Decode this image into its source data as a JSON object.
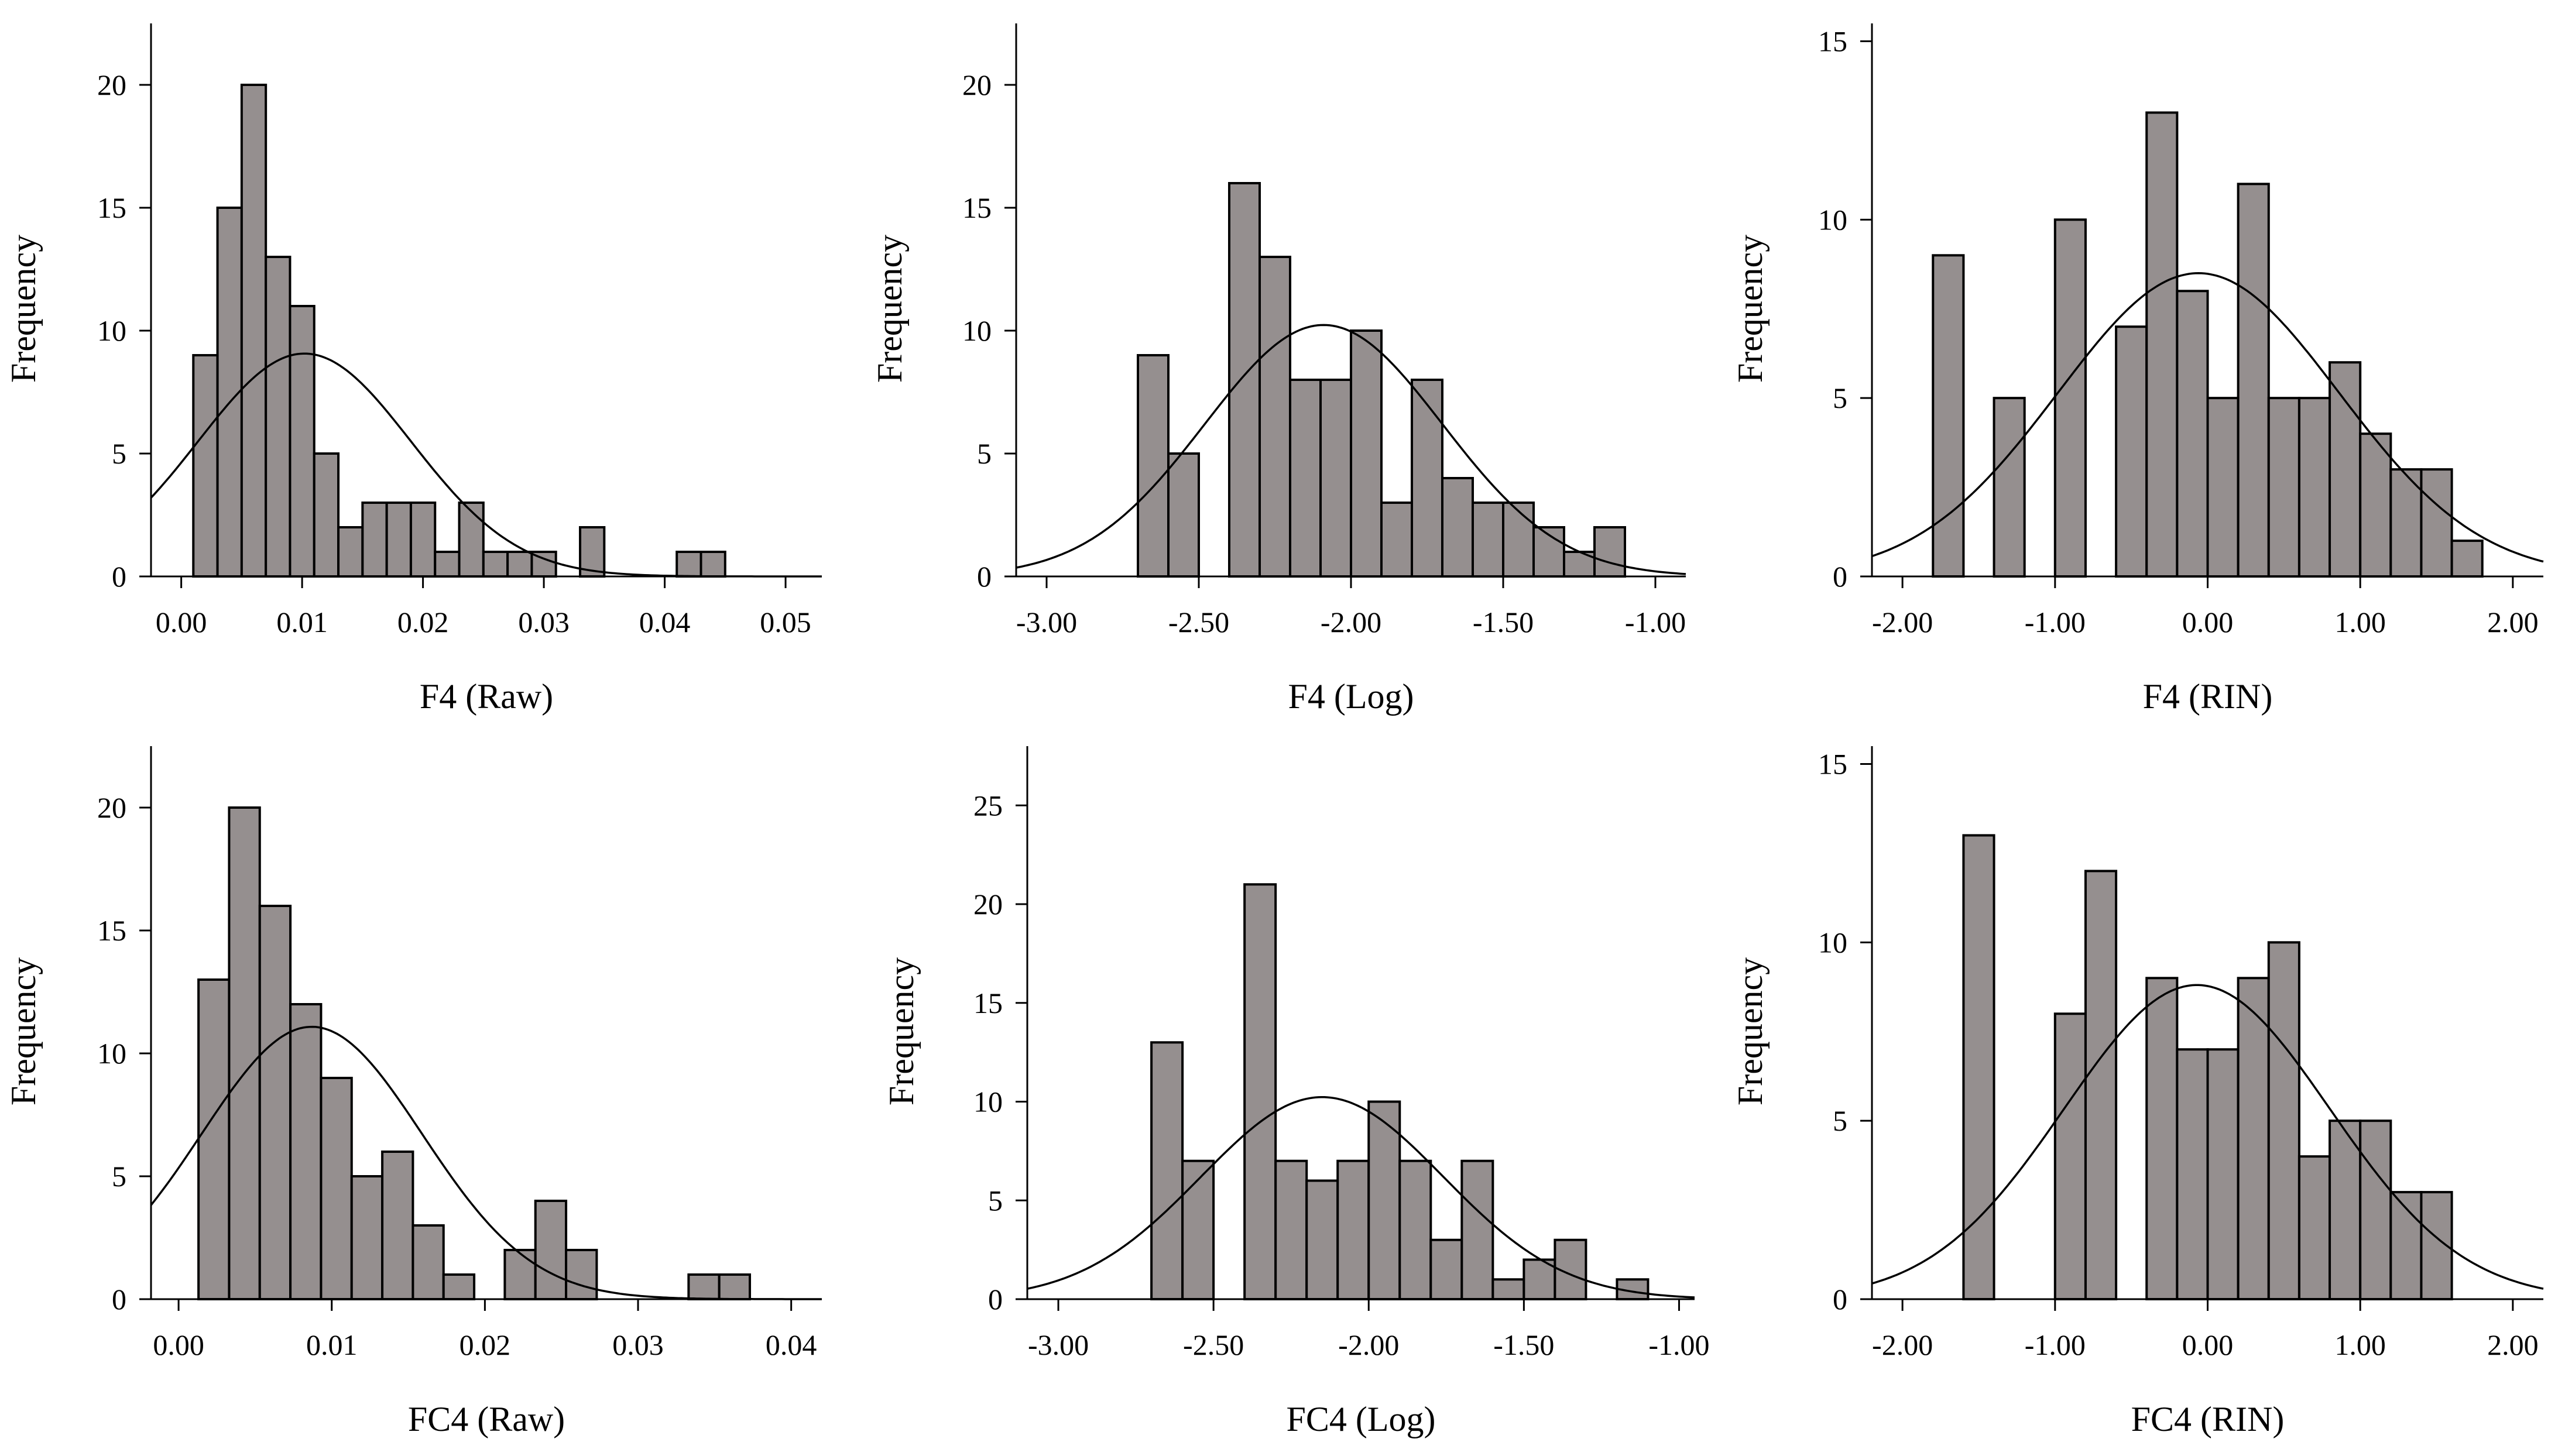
{
  "chart_data": [
    {
      "type": "bar",
      "title": "",
      "xlabel": "F4 (Raw)",
      "ylabel": "Frequency",
      "xlim": [
        -0.0025,
        0.053
      ],
      "ylim": [
        0,
        22.5
      ],
      "xticks": [
        0,
        0.01,
        0.02,
        0.03,
        0.04,
        0.05
      ],
      "xtick_labels": [
        "0.00",
        "0.01",
        "0.02",
        "0.03",
        "0.04",
        "0.05"
      ],
      "yticks": [
        0,
        5,
        10,
        15,
        20
      ],
      "ytick_labels": [
        "0",
        "5",
        "10",
        "15",
        "20"
      ],
      "bin_start": 0.001,
      "bin_width": 0.002,
      "values": [
        9,
        15,
        20,
        13,
        11,
        5,
        2,
        3,
        3,
        3,
        1,
        3,
        1,
        1,
        1,
        0,
        2,
        0,
        0,
        0,
        1,
        1
      ],
      "normal_curve": {
        "mean": 0.0102,
        "sd": 0.0088,
        "n": 100
      }
    },
    {
      "type": "bar",
      "title": "",
      "xlabel": "F4 (Log)",
      "ylabel": "Frequency",
      "xlim": [
        -3.1,
        -0.9
      ],
      "ylim": [
        0,
        22.5
      ],
      "xticks": [
        -3,
        -2.5,
        -2,
        -1.5,
        -1
      ],
      "xtick_labels": [
        "-3.00",
        "-2.50",
        "-2.00",
        "-1.50",
        "-1.00"
      ],
      "yticks": [
        0,
        5,
        10,
        15,
        20
      ],
      "ytick_labels": [
        "0",
        "5",
        "10",
        "15",
        "20"
      ],
      "bin_start": -2.7,
      "bin_width": 0.1,
      "values": [
        9,
        5,
        0,
        16,
        13,
        8,
        8,
        10,
        3,
        8,
        4,
        3,
        3,
        2,
        1,
        2
      ],
      "normal_curve": {
        "mean": -2.09,
        "sd": 0.39,
        "n": 100
      }
    },
    {
      "type": "bar",
      "title": "",
      "xlabel": "F4 (RIN)",
      "ylabel": "Frequency",
      "xlim": [
        -2.2,
        2.2
      ],
      "ylim": [
        0,
        15.5
      ],
      "xticks": [
        -2,
        -1,
        0,
        1,
        2
      ],
      "xtick_labels": [
        "-2.00",
        "-1.00",
        "0.00",
        "1.00",
        "2.00"
      ],
      "yticks": [
        0,
        5,
        10,
        15
      ],
      "ytick_labels": [
        "0",
        "5",
        "10",
        "15"
      ],
      "bin_start": -1.8,
      "bin_width": 0.2,
      "values": [
        9,
        0,
        5,
        0,
        10,
        0,
        7,
        13,
        8,
        5,
        11,
        5,
        5,
        6,
        4,
        3,
        3,
        1
      ],
      "normal_curve": {
        "mean": -0.06,
        "sd": 0.92,
        "n": 98
      }
    },
    {
      "type": "bar",
      "title": "",
      "xlabel": "FC4 (Raw)",
      "ylabel": "Frequency",
      "xlim": [
        -0.0018,
        0.042
      ],
      "ylim": [
        0,
        22.5
      ],
      "xticks": [
        0,
        0.01,
        0.02,
        0.03,
        0.04
      ],
      "xtick_labels": [
        "0.00",
        "0.01",
        "0.02",
        "0.03",
        "0.04"
      ],
      "yticks": [
        0,
        5,
        10,
        15,
        20
      ],
      "ytick_labels": [
        "0",
        "5",
        "10",
        "15",
        "20"
      ],
      "bin_start": 0.0013,
      "bin_width": 0.002,
      "values": [
        13,
        20,
        16,
        12,
        9,
        5,
        6,
        3,
        1,
        0,
        2,
        4,
        2,
        0,
        0,
        0,
        1,
        1
      ],
      "normal_curve": {
        "mean": 0.0087,
        "sd": 0.0072,
        "n": 100
      }
    },
    {
      "type": "bar",
      "title": "",
      "xlabel": "FC4 (Log)",
      "ylabel": "Frequency",
      "xlim": [
        -3.1,
        -0.95
      ],
      "ylim": [
        0,
        28
      ],
      "xticks": [
        -3,
        -2.5,
        -2,
        -1.5,
        -1
      ],
      "xtick_labels": [
        "-3.00",
        "-2.50",
        "-2.00",
        "-1.50",
        "-1.00"
      ],
      "yticks": [
        0,
        5,
        10,
        15,
        20,
        25
      ],
      "ytick_labels": [
        "0",
        "5",
        "10",
        "15",
        "20",
        "25"
      ],
      "bin_start": -2.7,
      "bin_width": 0.1,
      "values": [
        13,
        7,
        0,
        21,
        7,
        6,
        7,
        10,
        7,
        3,
        7,
        1,
        2,
        3,
        0,
        1
      ],
      "normal_curve": {
        "mean": -2.15,
        "sd": 0.39,
        "n": 100
      }
    },
    {
      "type": "bar",
      "title": "",
      "xlabel": "FC4 (RIN)",
      "ylabel": "Frequency",
      "xlim": [
        -2.2,
        2.2
      ],
      "ylim": [
        0,
        15.5
      ],
      "xticks": [
        -2,
        -1,
        0,
        1,
        2
      ],
      "xtick_labels": [
        "-2.00",
        "-1.00",
        "0.00",
        "1.00",
        "2.00"
      ],
      "yticks": [
        0,
        5,
        10,
        15
      ],
      "ytick_labels": [
        "0",
        "5",
        "10",
        "15"
      ],
      "bin_start": -1.6,
      "bin_width": 0.2,
      "values": [
        13,
        0,
        0,
        8,
        12,
        0,
        9,
        7,
        7,
        9,
        10,
        4,
        5,
        5,
        3,
        3
      ],
      "normal_curve": {
        "mean": -0.07,
        "sd": 0.87,
        "n": 96
      }
    }
  ]
}
